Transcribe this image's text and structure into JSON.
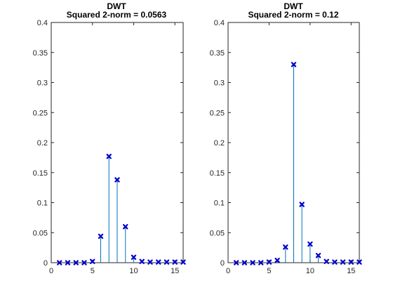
{
  "chart_data": [
    {
      "type": "stem",
      "title": "DWT",
      "subtitle": "Squared 2-norm = 0.0563",
      "xlim": [
        0,
        16
      ],
      "ylim": [
        0,
        0.4
      ],
      "xticks": [
        "0",
        "5",
        "10",
        "15"
      ],
      "yticks": [
        "0",
        "0.05",
        "0.1",
        "0.15",
        "0.2",
        "0.25",
        "0.3",
        "0.35",
        "0.4"
      ],
      "grid": false,
      "stem_color": "#0072BD",
      "marker_color": "#0000CC",
      "marker": "x",
      "x": [
        1,
        2,
        3,
        4,
        5,
        6,
        7,
        8,
        9,
        10,
        11,
        12,
        13,
        14,
        15,
        16
      ],
      "values": [
        0,
        0,
        0,
        0,
        0.002,
        0.044,
        0.177,
        0.138,
        0.06,
        0.009,
        0.002,
        0.001,
        0.001,
        0.001,
        0.001,
        0.001
      ]
    },
    {
      "type": "stem",
      "title": "DWT",
      "subtitle": "Squared 2-norm = 0.12",
      "xlim": [
        0,
        16
      ],
      "ylim": [
        0,
        0.4
      ],
      "xticks": [
        "0",
        "5",
        "10",
        "15"
      ],
      "yticks": [
        "0",
        "0.05",
        "0.1",
        "0.15",
        "0.2",
        "0.25",
        "0.3",
        "0.35",
        "0.4"
      ],
      "grid": false,
      "stem_color": "#0072BD",
      "marker_color": "#0000CC",
      "marker": "x",
      "x": [
        1,
        2,
        3,
        4,
        5,
        6,
        7,
        8,
        9,
        10,
        11,
        12,
        13,
        14,
        15,
        16
      ],
      "values": [
        0,
        0,
        0,
        0,
        0.001,
        0.004,
        0.026,
        0.33,
        0.097,
        0.031,
        0.012,
        0.002,
        0.001,
        0.001,
        0.001,
        0.001
      ]
    }
  ]
}
